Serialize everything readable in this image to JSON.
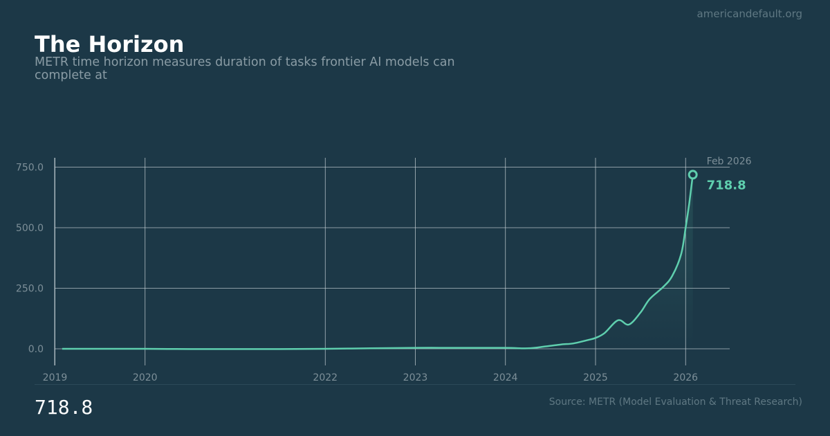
{
  "site": "americandefault.org",
  "title": "The Horizon",
  "subtitle": "METR time horizon measures duration of tasks frontier AI models can complete at",
  "big_value": "718.8",
  "source": "Source: METR (Model Evaluation & Threat Research)",
  "colors": {
    "background": "#1c3847",
    "line": "#5fcfae",
    "grid": "#cdd6db",
    "muted_text": "#7d8f98"
  },
  "chart_data": {
    "type": "line",
    "title": "The Horizon",
    "xlabel": "",
    "ylabel": "",
    "x_ticks": [
      "2019",
      "2020",
      "2022",
      "2023",
      "2024",
      "2025",
      "2026"
    ],
    "y_ticks": [
      "0.0",
      "250.0",
      "500.0",
      "750.0"
    ],
    "xlim": [
      2019.0,
      2026.5
    ],
    "ylim": [
      -70,
      790
    ],
    "grid": true,
    "series": [
      {
        "x": [
          2019.08,
          2019.5,
          2020.0,
          2020.5,
          2021.0,
          2021.5,
          2022.0,
          2022.5,
          2023.0,
          2023.5,
          2024.0,
          2024.25,
          2024.45,
          2024.62,
          2024.75,
          2024.9,
          2025.0,
          2025.1,
          2025.25,
          2025.37,
          2025.5,
          2025.6,
          2025.75,
          2025.85,
          2025.95,
          2026.0,
          2026.04,
          2026.08
        ],
        "y": [
          0,
          0,
          0,
          -1,
          -1,
          -1,
          0,
          2,
          4,
          4,
          4,
          2,
          10,
          18,
          22,
          35,
          45,
          65,
          118,
          100,
          150,
          205,
          255,
          300,
          390,
          500,
          600,
          719
        ]
      }
    ],
    "annotation": {
      "x": 2026.08,
      "y": 718.8,
      "date_label": "Feb 2026",
      "value_label": "718.8"
    }
  }
}
